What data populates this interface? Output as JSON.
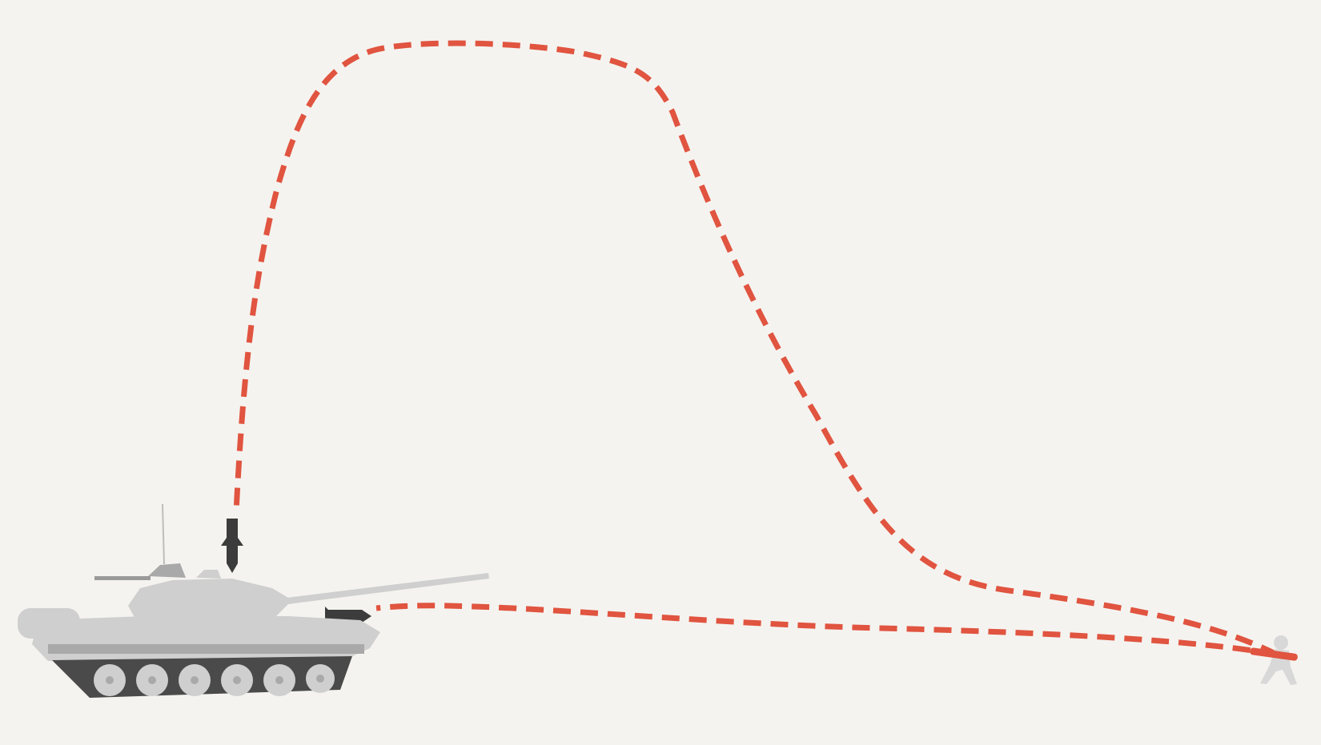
{
  "diagram": {
    "colors": {
      "background": "#f5f3ef",
      "trajectory": "#e05440",
      "missile": "#3c3c3c",
      "tank_body": "#cfcfcf",
      "tank_shadow": "#a9a9a9",
      "track": "#4a4a4a",
      "soldier": "#d8d8d8",
      "launcher": "#e05440"
    },
    "elements": {
      "tank": "main-battle-tank",
      "soldier": "crouching-soldier-with-launcher",
      "top_attack_missile": "top-attack-missile-icon",
      "direct_attack_missile": "direct-attack-missile-icon",
      "top_attack_path": "top-attack-trajectory",
      "direct_attack_path": "direct-attack-trajectory"
    }
  }
}
